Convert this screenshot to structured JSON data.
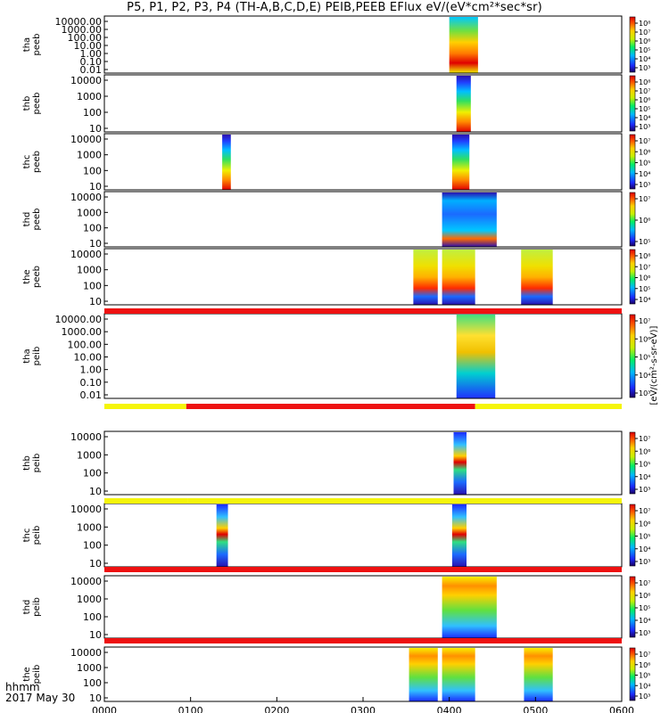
{
  "title": "P5, P1, P2, P3, P4 (TH-A,B,C,D,E) PEIB,PEEB EFlux eV/(eV*cm²*sec*sr)",
  "footer": {
    "axis_label": "hhmm",
    "date": "2017 May 30"
  },
  "colorbar_unit": "[eV/(cm²-s-sr-eV)]",
  "colors": {
    "red_bar": "#ee1111",
    "yellow_bar": "#f5f50a",
    "frame": "#000000"
  },
  "chart_data": {
    "type": "heatmap",
    "x_axis": {
      "range_hhmm": [
        "0000",
        "0600"
      ],
      "ticks": [
        "0000",
        "0100",
        "0200",
        "0300",
        "0400",
        "0500",
        "0600"
      ]
    },
    "panels": [
      {
        "probe": "tha",
        "product": "peeb",
        "ylabels": [
          "10000.00",
          "1000.00",
          "100.00",
          "10.00",
          "1.00",
          "0.10",
          "0.01"
        ],
        "cbar_labels": [
          "10⁸",
          "10⁷",
          "10⁶",
          "10⁵",
          "10⁴",
          "10³"
        ],
        "blocks": [
          {
            "start": "0400",
            "end": "0420",
            "style": "high"
          }
        ]
      },
      {
        "probe": "thb",
        "product": "peeb",
        "ylabels": [
          "10000",
          "1000",
          "100",
          "10"
        ],
        "cbar_labels": [
          "10⁸",
          "10⁷",
          "10⁶",
          "10⁵",
          "10⁴",
          "10³"
        ],
        "blocks": [
          {
            "start": "0405",
            "end": "0415",
            "style": "low"
          }
        ]
      },
      {
        "probe": "thc",
        "product": "peeb",
        "ylabels": [
          "10000",
          "1000",
          "100",
          "10"
        ],
        "cbar_labels": [
          "10⁷",
          "10⁶",
          "10⁵",
          "10⁴",
          "10³"
        ],
        "blocks": [
          {
            "start": "0122",
            "end": "0128",
            "style": "low"
          },
          {
            "start": "0402",
            "end": "0414",
            "style": "low"
          }
        ]
      },
      {
        "probe": "thd",
        "product": "peeb",
        "ylabels": [
          "10000",
          "1000",
          "100",
          "10"
        ],
        "cbar_labels": [
          "10⁷",
          "10⁶",
          "10⁵"
        ],
        "blocks": [
          {
            "start": "0355",
            "end": "0433",
            "style": "cool"
          }
        ]
      },
      {
        "probe": "the",
        "product": "peeb",
        "ylabels": [
          "10000",
          "1000",
          "100",
          "10"
        ],
        "cbar_labels": [
          "10⁸",
          "10⁷",
          "10⁶",
          "10⁵",
          "10⁴"
        ],
        "blocks": [
          {
            "start": "0335",
            "end": "0352",
            "style": "warm"
          },
          {
            "start": "0355",
            "end": "0418",
            "style": "warm"
          },
          {
            "start": "0450",
            "end": "0512",
            "style": "warm"
          }
        ]
      },
      {
        "probe": "tha",
        "product": "peib",
        "ylabels": [
          "10000.00",
          "1000.00",
          "100.00",
          "10.00",
          "1.00",
          "0.10",
          "0.01"
        ],
        "cbar_labels": [
          "10⁷",
          "10⁶",
          "10⁵",
          "10⁴",
          "10³"
        ],
        "blocks": [
          {
            "start": "0405",
            "end": "0432",
            "style": "mixed"
          }
        ]
      },
      {
        "probe": "thb",
        "product": "peib",
        "ylabels": [
          "10000",
          "1000",
          "100",
          "10"
        ],
        "cbar_labels": [
          "10⁷",
          "10⁶",
          "10⁵",
          "10⁴",
          "10³"
        ],
        "blocks": [
          {
            "start": "0403",
            "end": "0412",
            "style": "ion"
          }
        ]
      },
      {
        "probe": "thc",
        "product": "peib",
        "ylabels": [
          "10000",
          "1000",
          "100",
          "10"
        ],
        "cbar_labels": [
          "10⁷",
          "10⁶",
          "10⁵",
          "10⁴",
          "10³"
        ],
        "blocks": [
          {
            "start": "0118",
            "end": "0126",
            "style": "ion"
          },
          {
            "start": "0402",
            "end": "0412",
            "style": "ion"
          }
        ]
      },
      {
        "probe": "thd",
        "product": "peib",
        "ylabels": [
          "10000",
          "1000",
          "100",
          "10"
        ],
        "cbar_labels": [
          "10⁷",
          "10⁶",
          "10⁵",
          "10⁴",
          "10³"
        ],
        "blocks": [
          {
            "start": "0355",
            "end": "0433",
            "style": "warmion"
          }
        ]
      },
      {
        "probe": "the",
        "product": "peib",
        "ylabels": [
          "10000",
          "1000",
          "100",
          "10"
        ],
        "cbar_labels": [
          "10⁷",
          "10⁶",
          "10⁵",
          "10⁴",
          "10³"
        ],
        "blocks": [
          {
            "start": "0332",
            "end": "0352",
            "style": "warmion"
          },
          {
            "start": "0355",
            "end": "0418",
            "style": "warmion"
          },
          {
            "start": "0452",
            "end": "0512",
            "style": "warmion"
          }
        ]
      }
    ],
    "status_bars": [
      {
        "after_panel": 5,
        "segments": [
          {
            "start": "0000",
            "end": "0600",
            "color": "red"
          }
        ]
      },
      {
        "after_panel": 6,
        "segments": [
          {
            "start": "0000",
            "end": "0057",
            "color": "yellow"
          },
          {
            "start": "0057",
            "end": "0418",
            "color": "red"
          },
          {
            "start": "0418",
            "end": "0600",
            "color": "yellow"
          }
        ]
      },
      {
        "after_panel": 7,
        "segments": [
          {
            "start": "0000",
            "end": "0058",
            "color": "yellow"
          },
          {
            "start": "0058",
            "end": "0600",
            "color": "yellow"
          }
        ]
      },
      {
        "after_panel": 8,
        "segments": [
          {
            "start": "0000",
            "end": "0600",
            "color": "red"
          }
        ]
      },
      {
        "after_panel": 9,
        "segments": [
          {
            "start": "0000",
            "end": "0600",
            "color": "red"
          }
        ]
      }
    ]
  }
}
